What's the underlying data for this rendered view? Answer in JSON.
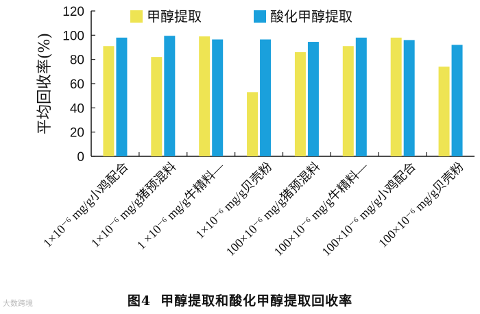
{
  "chart_data": {
    "type": "bar",
    "ylabel": "平均回收率(%)",
    "ylim": [
      0,
      120
    ],
    "yticks": [
      0,
      20,
      40,
      60,
      80,
      100,
      120
    ],
    "categories": [
      "1×10⁻⁶ mg/g小鸡配合",
      "1×10⁻⁶ mg/g猪预混料",
      "1 ×10⁻⁶ mg/g牛精料—",
      "1×10⁻⁶ mg/g贝壳粉",
      "100×10⁻⁶ mg/g猪预混料",
      "100×10⁻⁶ mg/g牛精料—",
      "100×10⁻⁶ mg/g小鸡配合",
      "100×10⁻⁶ mg/g贝壳粉"
    ],
    "series": [
      {
        "name": "甲醇提取",
        "color": "#eee453",
        "values": [
          91,
          82,
          99,
          53,
          86,
          91,
          98,
          74
        ]
      },
      {
        "name": "酸化甲醇提取",
        "color": "#1aa0dc",
        "values": [
          98,
          99.5,
          96.5,
          96.5,
          94.5,
          98,
          96,
          92
        ]
      }
    ],
    "legend": "top"
  },
  "caption": {
    "number": "图4",
    "text": "甲醇提取和酸化甲醇提取回收率"
  },
  "watermark": "大数跨境"
}
